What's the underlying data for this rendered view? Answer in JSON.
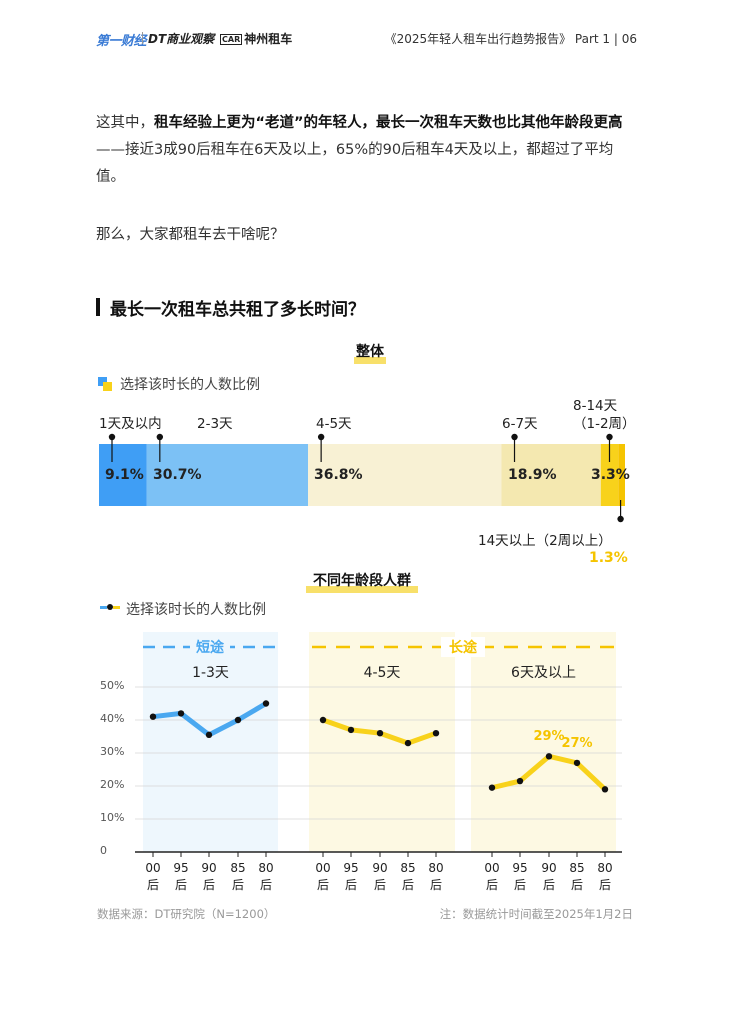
{
  "header": {
    "logo_a": "第一财经",
    "logo_dt": "DT商业观察",
    "logo_x": "×",
    "logo_car_mark": "CAR",
    "logo_car": "神州租车",
    "report": "《2025年轻人租车出行趋势报告》  Part 1  |  06"
  },
  "body": {
    "p1_bold1": "租车经验上更为“老道”的年轻人，最长一次租车天数也比其他年龄段更高",
    "p1_pre": "这其中，",
    "p1_rest": "——接近3成90后租车在6天及以上，65%的90后租车4天及以上，都超过了平均值。",
    "p2": "那么，大家都租车去干啥呢？"
  },
  "section_title": "最长一次租车总共租了多长时间？",
  "chart_data": [
    {
      "type": "bar",
      "title": "整体",
      "legend": "选择该时长的人数比例",
      "categories": [
        "1天及以内",
        "2-3天",
        "4-5天",
        "6-7天",
        "8-14天（1-2周）",
        "14天以上（2周以上）"
      ],
      "category_lines": [
        [
          "1天及以内"
        ],
        [
          "2-3天"
        ],
        [
          "4-5天"
        ],
        [
          "6-7天"
        ],
        [
          "8-14天",
          "（1-2周）"
        ],
        [
          "14天以上（2周以上）"
        ]
      ],
      "values": [
        9.1,
        30.7,
        36.8,
        18.9,
        3.3,
        1.3
      ],
      "value_labels": [
        "9.1%",
        "30.7%",
        "36.8%",
        "18.9%",
        "3.3%",
        "1.3%"
      ],
      "colors": [
        "#3f9ef5",
        "#7cc1f5",
        "#f8f1d4",
        "#f4e8b0",
        "#f8d21b",
        "#f5c400"
      ],
      "stacked": true,
      "xlim": [
        0,
        100
      ]
    },
    {
      "type": "line",
      "title": "不同年龄段人群",
      "legend": "选择该时长的人数比例",
      "groups": [
        {
          "label": "短途",
          "items": [
            "1-3天"
          ],
          "color": "#4aa8f0"
        },
        {
          "label": "长途",
          "items": [
            "4-5天",
            "6天及以上"
          ],
          "color": "#f5c400"
        }
      ],
      "x_ticks": [
        "00后",
        "95后",
        "90后",
        "85后",
        "80后"
      ],
      "yticks": [
        "50%",
        "40%",
        "30%",
        "20%",
        "10%",
        "0"
      ],
      "ylim": [
        0,
        50
      ],
      "series": [
        {
          "name": "1-3天",
          "color": "#4aa8f0",
          "values": [
            41,
            42,
            35.5,
            40,
            45
          ]
        },
        {
          "name": "4-5天",
          "color": "#f8d21b",
          "values": [
            40,
            37,
            36,
            33,
            36
          ]
        },
        {
          "name": "6天及以上",
          "color": "#f8d21b",
          "values": [
            19.5,
            21.5,
            29,
            27,
            19
          ],
          "point_labels": [
            "",
            "",
            "29%",
            "27%",
            ""
          ]
        }
      ]
    }
  ],
  "footer": {
    "source": "数据来源：DT研究院（N=1200）",
    "note": "注：数据统计时间截至2025年1月2日"
  }
}
